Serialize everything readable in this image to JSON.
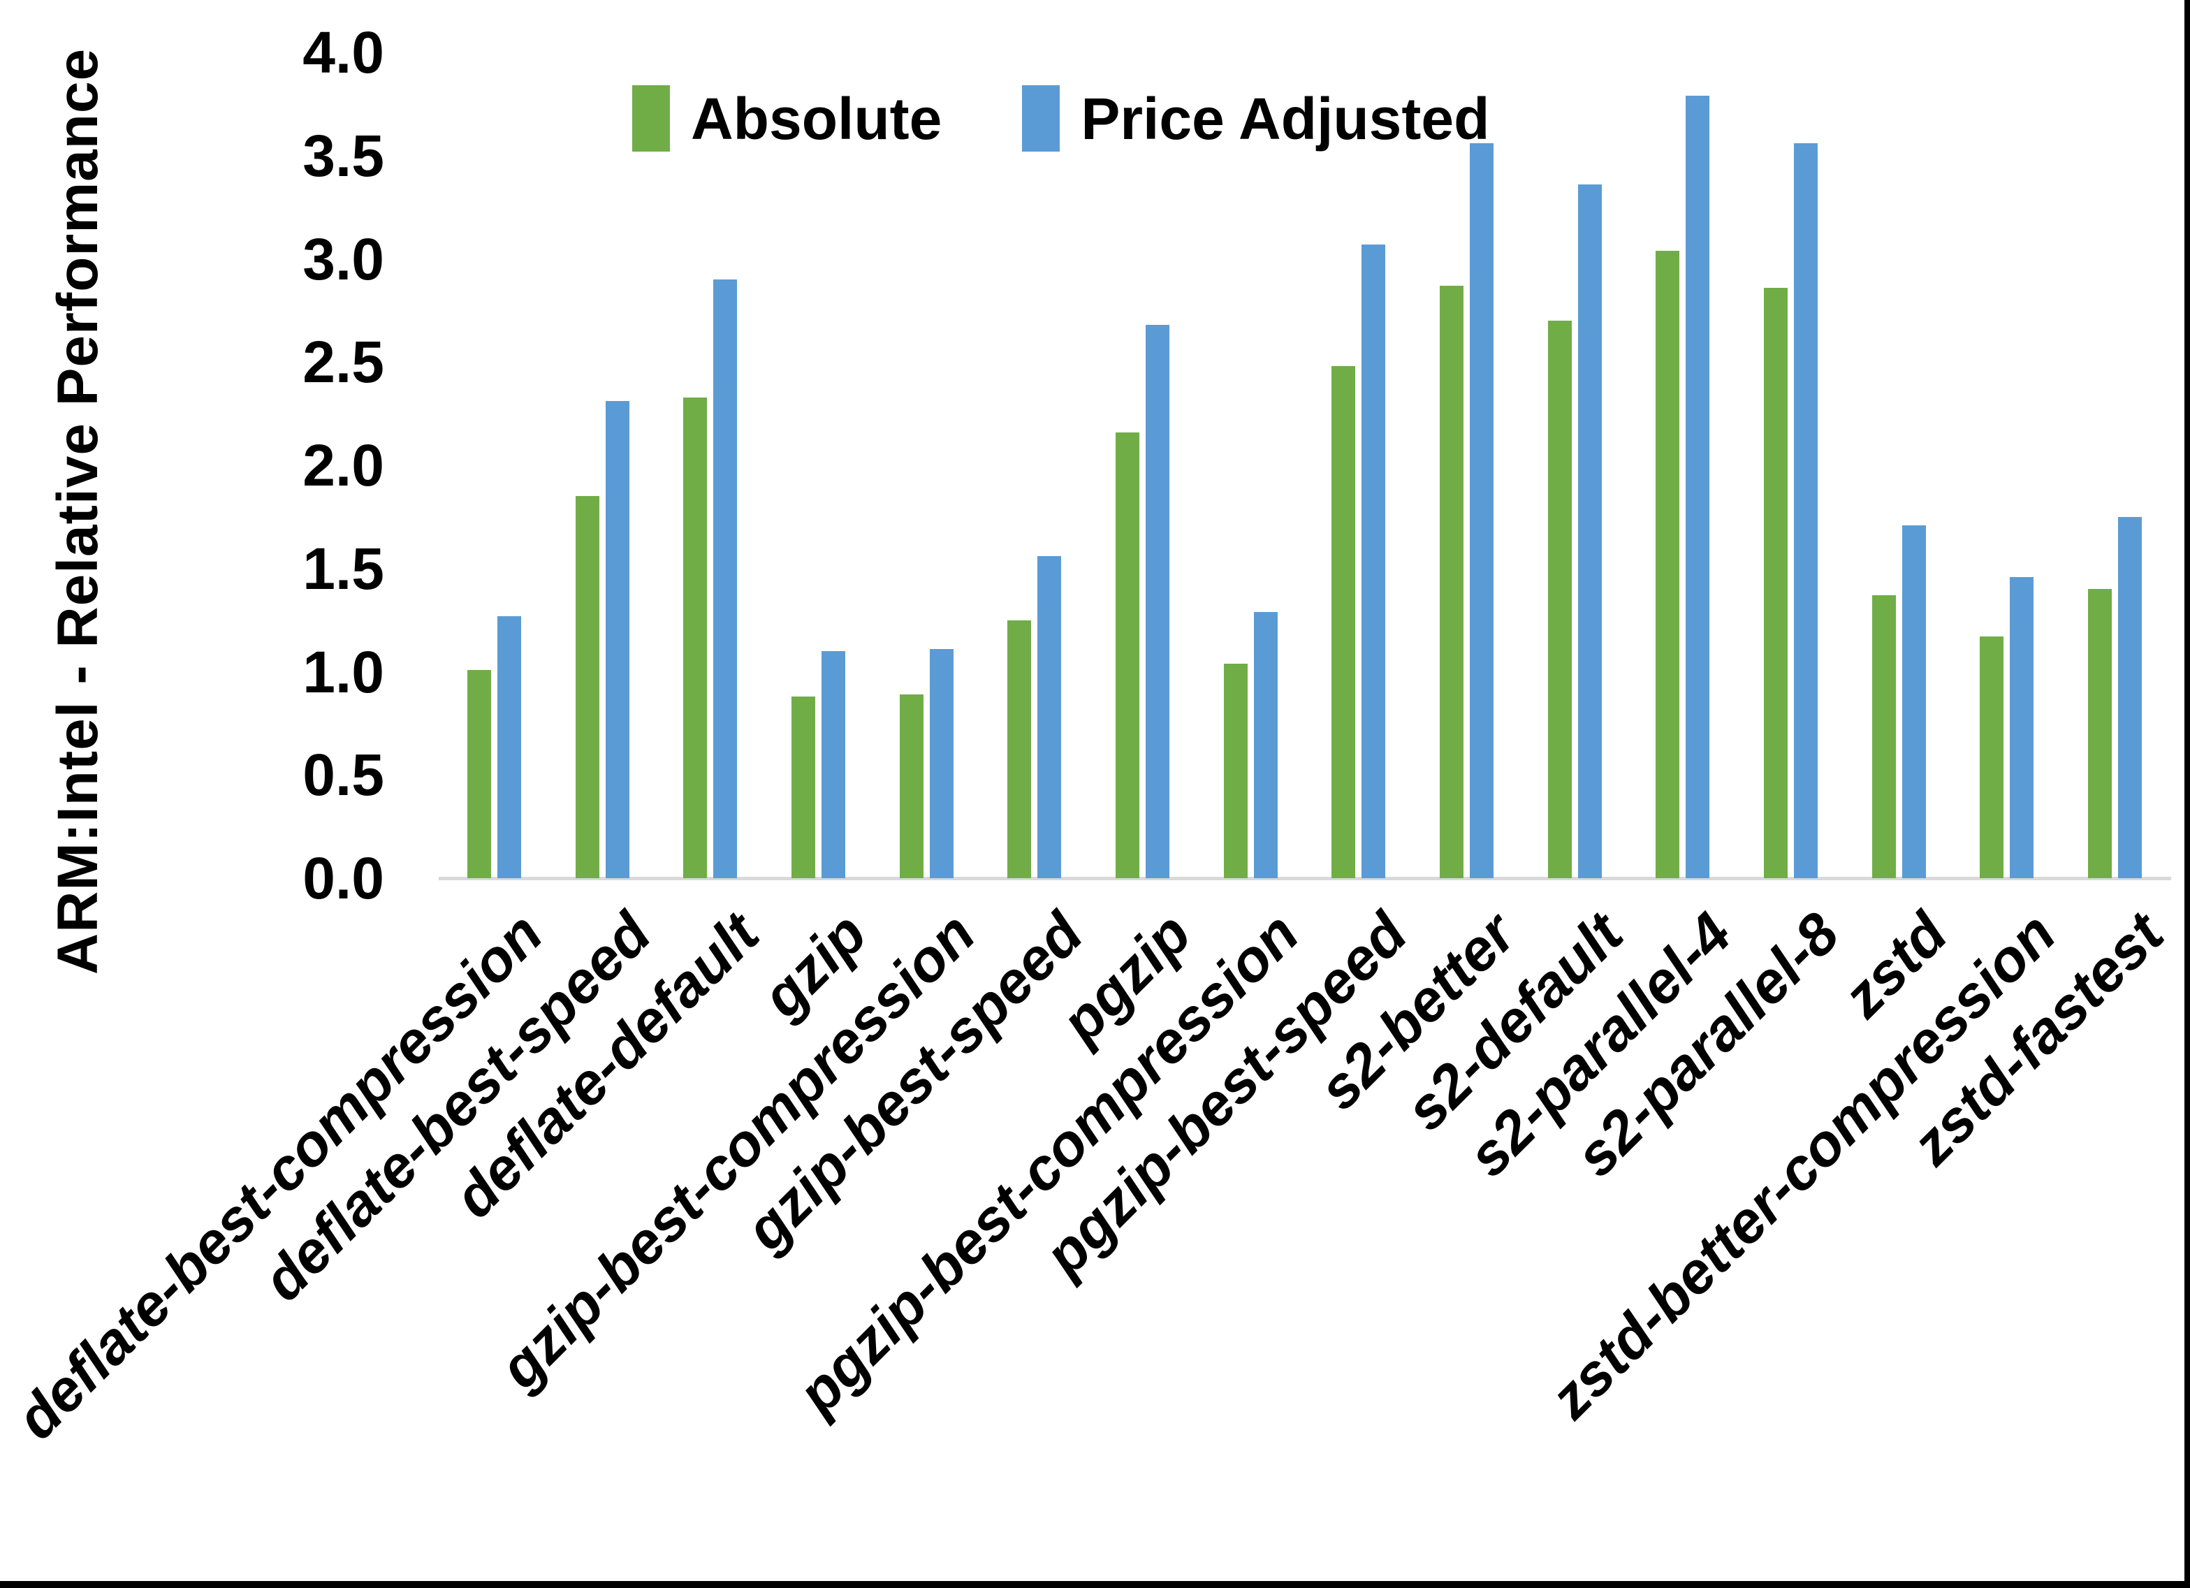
{
  "y_axis": {
    "title": "ARM:Intel - Relative Performance",
    "tick_labels": [
      "0.0",
      "0.5",
      "1.0",
      "1.5",
      "2.0",
      "2.5",
      "3.0",
      "3.5",
      "4.0"
    ]
  },
  "legend": {
    "items": [
      {
        "label": "Absolute",
        "color": "#70AD47"
      },
      {
        "label": "Price Adjusted",
        "color": "#5B9BD5"
      }
    ]
  },
  "colors": {
    "axis_line": "#D9D9D9",
    "background": "#FFFFFF",
    "border": "#000000",
    "text": "#000000"
  },
  "chart_data": {
    "type": "bar",
    "title": "",
    "xlabel": "",
    "ylabel": "ARM:Intel - Relative Performance",
    "ylim": [
      0,
      4.0
    ],
    "ytick_step": 0.5,
    "grid": false,
    "legend_position": "top-center",
    "categories": [
      "deflate-best-compression",
      "deflate-best-speed",
      "deflate-default",
      "gzip",
      "gzip-best-compression",
      "gzip-best-speed",
      "pgzip",
      "pgzip-best-compression",
      "pgzip-best-speed",
      "s2-better",
      "s2-default",
      "s2-parallel-4",
      "s2-parallel-8",
      "zstd",
      "zstd-better-compression",
      "zstd-fastest"
    ],
    "series": [
      {
        "name": "Absolute",
        "color": "#70AD47",
        "values": [
          1.01,
          1.85,
          2.33,
          0.88,
          0.89,
          1.25,
          2.16,
          1.04,
          2.48,
          2.87,
          2.7,
          3.04,
          2.86,
          1.37,
          1.17,
          1.4
        ]
      },
      {
        "name": "Price Adjusted",
        "color": "#5B9BD5",
        "values": [
          1.27,
          2.31,
          2.9,
          1.1,
          1.11,
          1.56,
          2.68,
          1.29,
          3.07,
          3.56,
          3.36,
          3.79,
          3.56,
          1.71,
          1.46,
          1.75
        ]
      }
    ]
  }
}
